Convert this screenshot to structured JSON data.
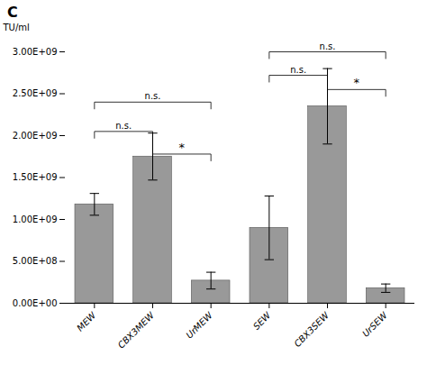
{
  "chart_data": {
    "type": "bar",
    "title": "C",
    "categories": [
      "MEW",
      "CBX3MEW",
      "UrMEW",
      "SEW",
      "CBX3SEW",
      "UrSEW"
    ],
    "values": [
      1180000000.0,
      1750000000.0,
      270000000.0,
      900000000.0,
      2350000000.0,
      180000000.0
    ],
    "errors": [
      130000000.0,
      280000000.0,
      100000000.0,
      380000000.0,
      450000000.0,
      50000000.0
    ],
    "color": "#999999",
    "ylabel": "TU/ml",
    "ylim": [
      0,
      3000000000.0
    ],
    "yticks": [
      {
        "value": 0,
        "label": "0.00E+00"
      },
      {
        "value": 500000000.0,
        "label": "5.00E+08"
      },
      {
        "value": 1000000000.0,
        "label": "1.00E+09"
      },
      {
        "value": 1500000000.0,
        "label": "1.50E+09"
      },
      {
        "value": 2000000000.0,
        "label": "2.00E+09"
      },
      {
        "value": 2500000000.0,
        "label": "2.50E+09"
      },
      {
        "value": 3000000000.0,
        "label": "3.00E+09"
      }
    ],
    "grid": false,
    "annotations": [
      {
        "x1": "MEW",
        "x2": "CBX3MEW",
        "y": 2050000000.0,
        "label": "n.s."
      },
      {
        "x1": "MEW",
        "x2": "UrMEW",
        "y": 2400000000.0,
        "label": "n.s."
      },
      {
        "x1": "CBX3MEW",
        "x2": "UrMEW",
        "y": 1780000000.0,
        "label": "*"
      },
      {
        "x1": "SEW",
        "x2": "CBX3SEW",
        "y": 2720000000.0,
        "label": "n.s."
      },
      {
        "x1": "SEW",
        "x2": "UrSEW",
        "y": 3000000000.0,
        "label": "n.s."
      },
      {
        "x1": "CBX3SEW",
        "x2": "UrSEW",
        "y": 2550000000.0,
        "label": "*"
      }
    ]
  }
}
